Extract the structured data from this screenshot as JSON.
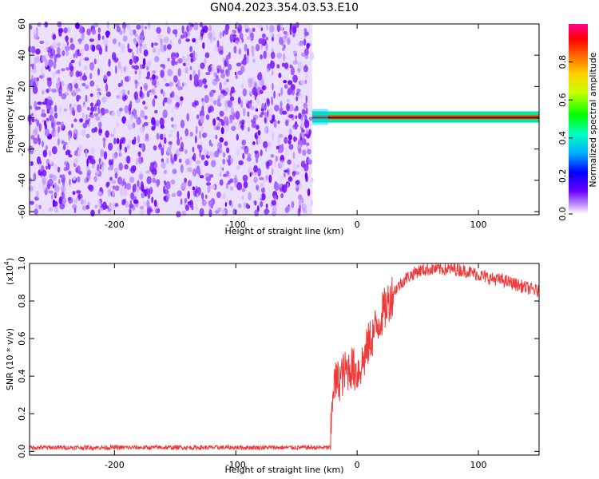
{
  "title": "GN04.2023.354.03.53.E10",
  "colors": {
    "noise": "#7b18ff",
    "line": "#ee3a3a",
    "frame": "#000000"
  },
  "colorbar": {
    "label": "Normalized spectral amplitude",
    "range": [
      0.0,
      1.0
    ],
    "ticks": [
      0.0,
      0.2,
      0.4,
      0.6,
      0.8
    ],
    "tick_labels": [
      "0.0",
      "0.2",
      "0.4",
      "0.6",
      "0.8"
    ]
  },
  "chart_data": [
    {
      "type": "heatmap",
      "xlabel": "Height of straight line (km)",
      "ylabel": "Frequency (Hz)",
      "xlim": [
        -270,
        150
      ],
      "ylim": [
        -62,
        60
      ],
      "x_ticks": [
        -200,
        -100,
        0,
        100
      ],
      "x_tick_labels": [
        "-200",
        "-100",
        "0",
        "100"
      ],
      "y_ticks": [
        -60,
        -40,
        -20,
        0,
        20,
        40,
        60
      ],
      "y_tick_labels": [
        "-60",
        "-40",
        "-20",
        "0",
        "20",
        "40",
        "60"
      ],
      "noise_region": {
        "x_range": [
          -270,
          -37
        ],
        "y_range": [
          -62,
          60
        ],
        "amplitude": 0.1
      },
      "signal_band": {
        "x_range": [
          -37,
          150
        ],
        "center_hz": 0,
        "peak_amplitude": 1.0
      }
    },
    {
      "type": "line",
      "xlabel": "Height of straight line (km)",
      "ylabel": "SNR (10 * v/v)",
      "y_scale_label": "(x10",
      "y_scale_exponent": "4",
      "xlim": [
        -270,
        150
      ],
      "ylim": [
        -0.02,
        1.0
      ],
      "x_ticks": [
        -200,
        -100,
        0,
        100
      ],
      "x_tick_labels": [
        "-200",
        "-100",
        "0",
        "100"
      ],
      "y_ticks": [
        0.0,
        0.2,
        0.4,
        0.6,
        0.8,
        1.0
      ],
      "y_tick_labels": [
        "0.0",
        "0.2",
        "0.4",
        "0.6",
        "0.8",
        "1.0"
      ],
      "series": [
        {
          "x": [
            -270,
            -200,
            -100,
            -22,
            -20,
            -15,
            -10,
            -5,
            0,
            5,
            10,
            20,
            30,
            40,
            50,
            60,
            70,
            80,
            90,
            100,
            110,
            120,
            130,
            140,
            150
          ],
          "y": [
            0.02,
            0.02,
            0.02,
            0.02,
            0.35,
            0.38,
            0.42,
            0.45,
            0.42,
            0.48,
            0.58,
            0.72,
            0.85,
            0.92,
            0.96,
            0.97,
            0.97,
            0.97,
            0.96,
            0.94,
            0.92,
            0.91,
            0.89,
            0.87,
            0.85
          ]
        }
      ]
    }
  ]
}
